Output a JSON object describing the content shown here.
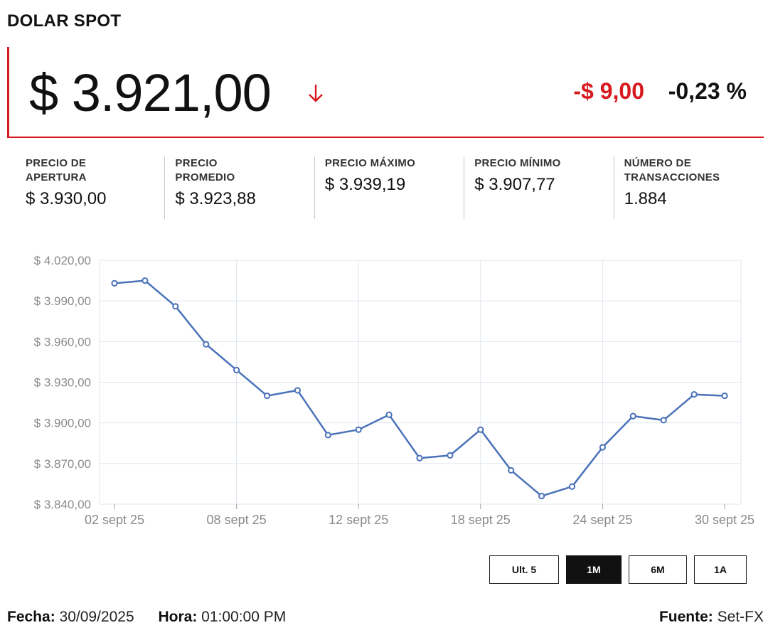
{
  "title": "DOLAR SPOT",
  "price": {
    "value": "$ 3.921,00",
    "change": "-$ 9,00",
    "change_pct": "-0,23 %",
    "direction_icon": "arrow-down-icon",
    "accent_color": "#d71920"
  },
  "stats": [
    {
      "label": "PRECIO DE\nAPERTURA",
      "value": "$ 3.930,00"
    },
    {
      "label": "PRECIO\nPROMEDIO",
      "value": "$ 3.923,88"
    },
    {
      "label": "PRECIO MÁXIMO",
      "value": "$ 3.939,19"
    },
    {
      "label": "PRECIO MÍNIMO",
      "value": "$ 3.907,77"
    },
    {
      "label": "NÚMERO DE\nTRANSACCIONES",
      "value": "1.884"
    }
  ],
  "chart_data": {
    "type": "line",
    "line_color": "#4a72b8",
    "grid": true,
    "ylim": [
      3840,
      4020
    ],
    "y_ticks": [
      3840,
      3870,
      3900,
      3930,
      3960,
      3990,
      4020
    ],
    "y_tick_labels": [
      "$ 3.840,00",
      "$ 3.870,00",
      "$ 3.900,00",
      "$ 3.930,00",
      "$ 3.960,00",
      "$ 3.990,00",
      "$ 4.020,00"
    ],
    "x_tick_labels": [
      "02 sept 25",
      "08 sept 25",
      "12 sept 25",
      "18 sept 25",
      "24 sept 25",
      "30 sept 25"
    ],
    "x_tick_index": [
      0,
      4,
      8,
      12,
      16,
      20
    ],
    "series": [
      {
        "values": [
          4003,
          4005,
          3986,
          3958,
          3939,
          3920,
          3924,
          3891,
          3895,
          3906,
          3874,
          3876,
          3895,
          3865,
          3846,
          3853,
          3882,
          3905,
          3902,
          3921,
          3920
        ]
      }
    ]
  },
  "ranges": [
    {
      "label": "Ult. 5",
      "active": false
    },
    {
      "label": "1M",
      "active": true
    },
    {
      "label": "6M",
      "active": false
    },
    {
      "label": "1A",
      "active": false
    }
  ],
  "footer": {
    "fecha_label": "Fecha:",
    "fecha": "30/09/2025",
    "hora_label": "Hora:",
    "hora": "01:00:00 PM",
    "fuente_label": "Fuente:",
    "fuente": "Set-FX"
  }
}
